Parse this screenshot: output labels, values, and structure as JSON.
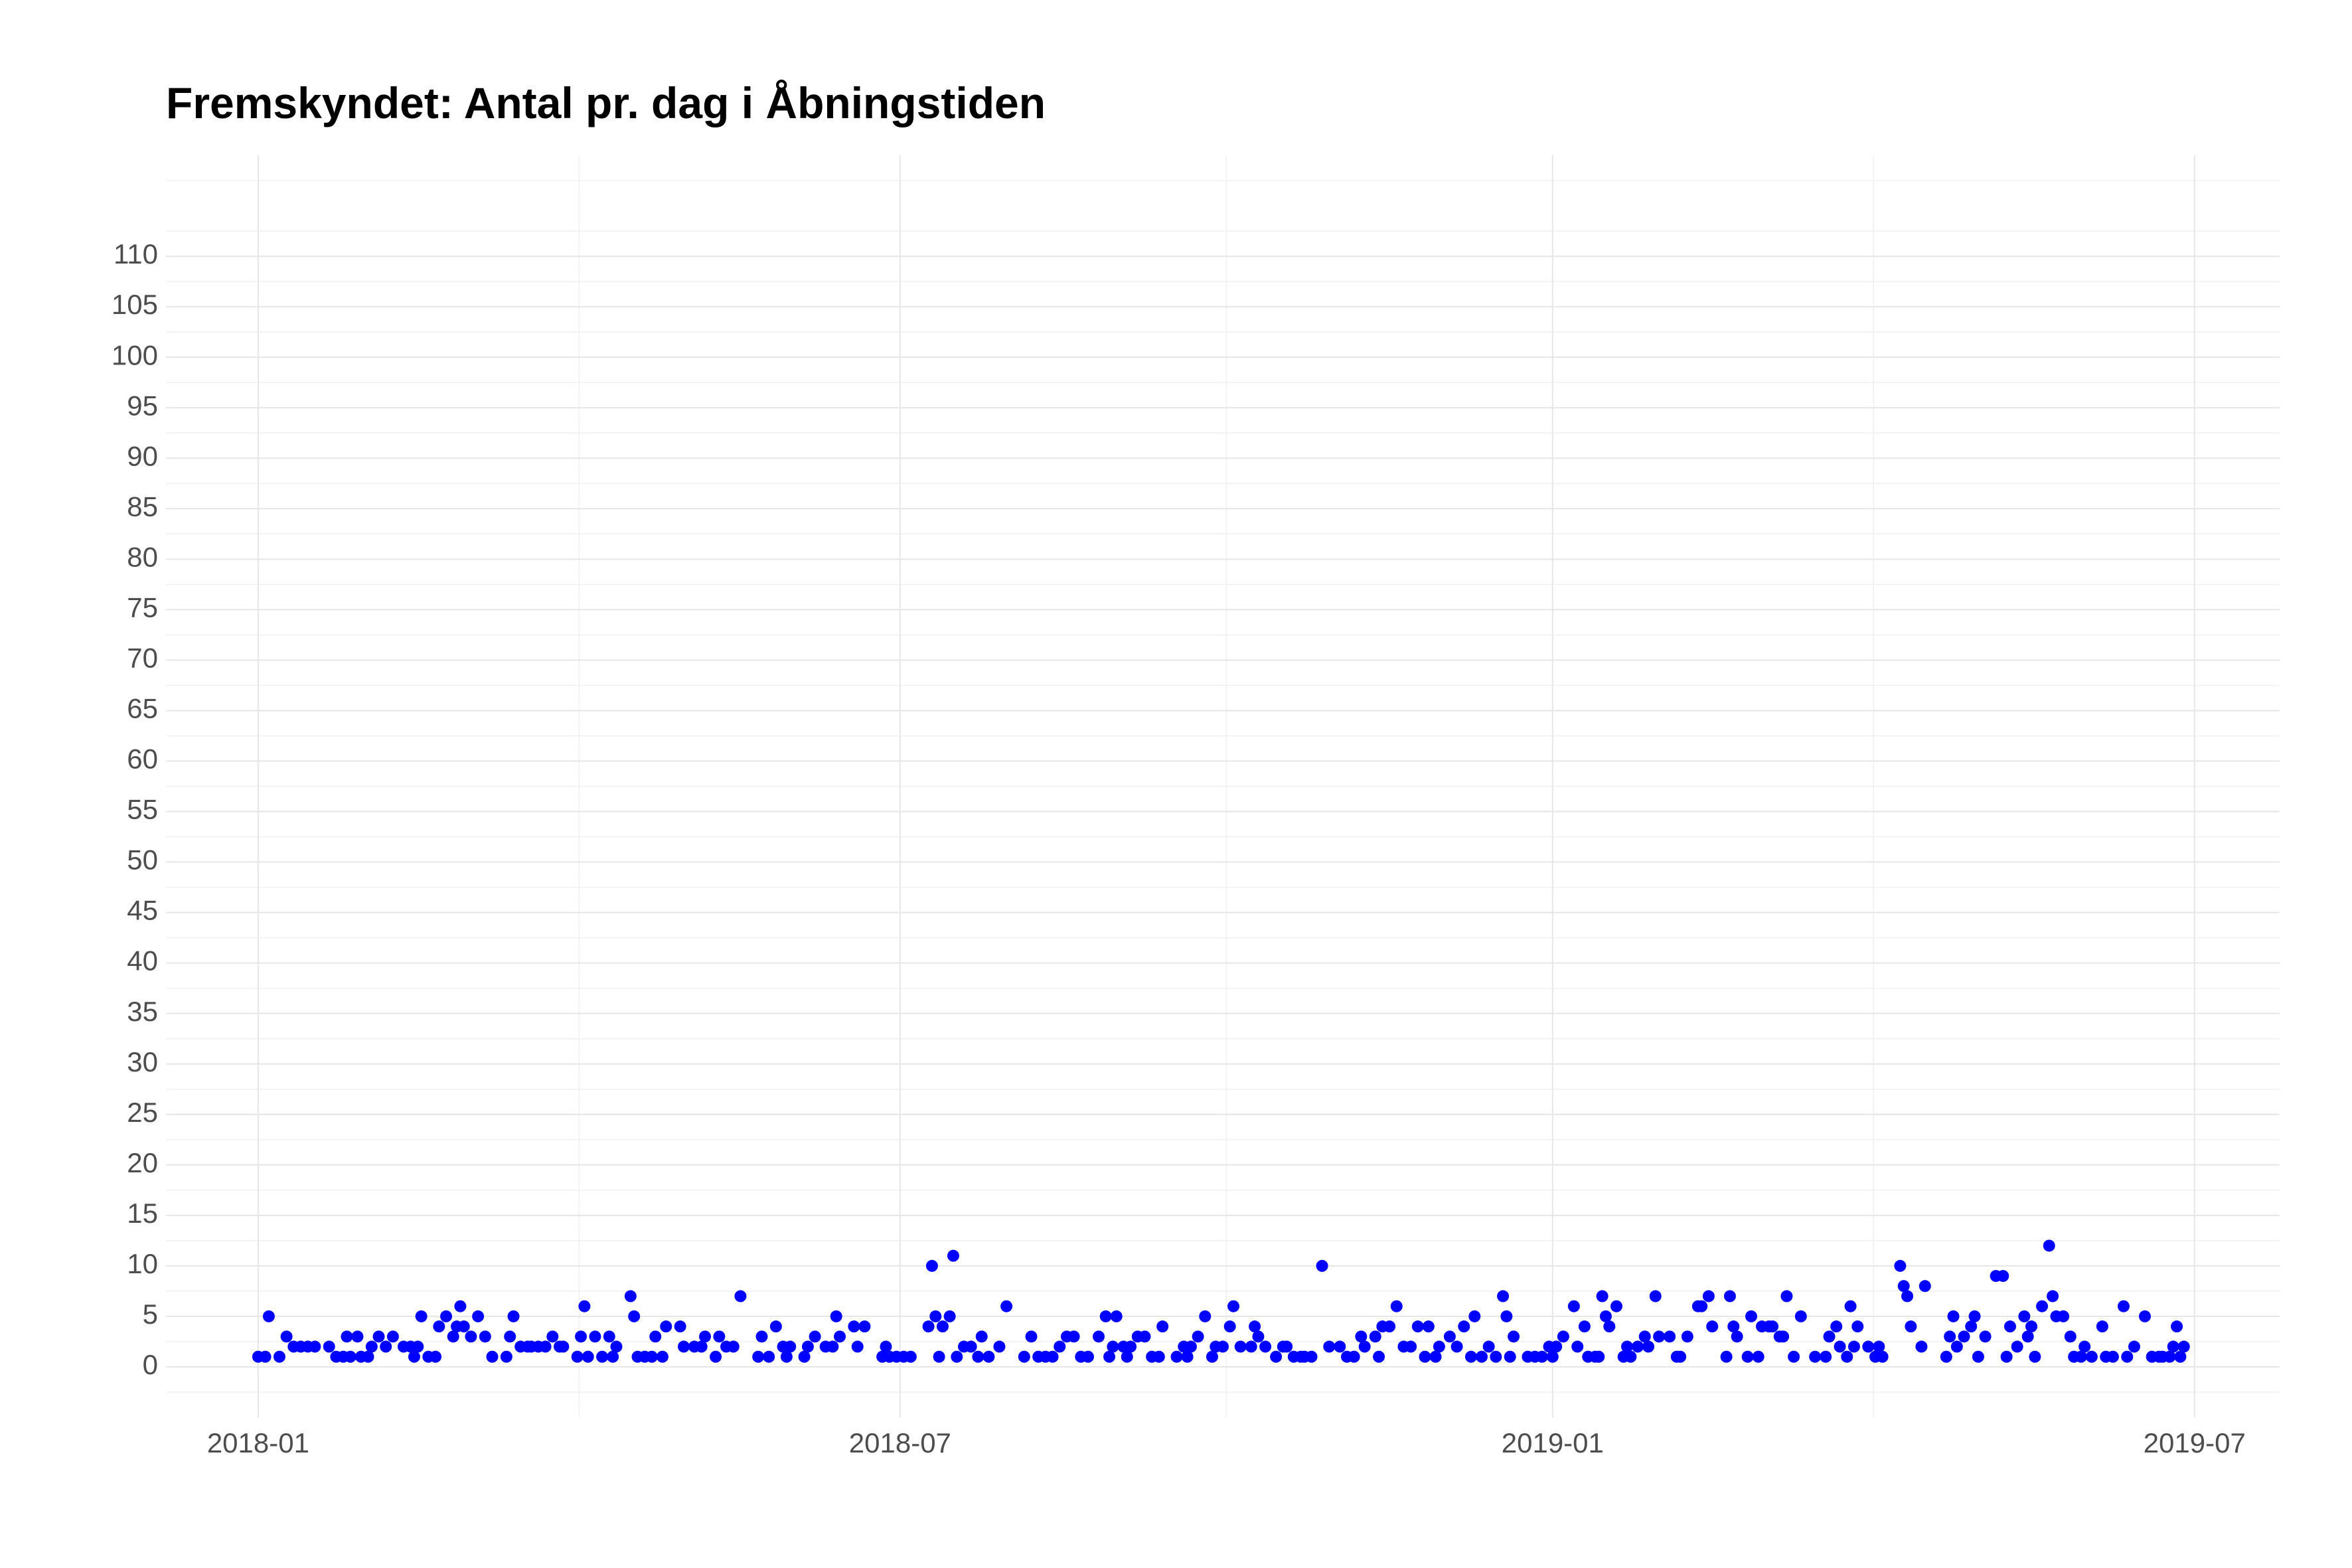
{
  "chart_data": {
    "type": "scatter",
    "title": "Fremskyndet: Antal pr. dag i Åbningstiden",
    "color": "#0000ff",
    "grid": true,
    "xlim": [
      -26,
      570
    ],
    "xticks": [
      {
        "value": 0,
        "label": "2018-01"
      },
      {
        "value": 181,
        "label": "2018-07"
      },
      {
        "value": 365,
        "label": "2019-01"
      },
      {
        "value": 546,
        "label": "2019-07"
      }
    ],
    "ylim": [
      -5,
      120
    ],
    "yticks": [
      0,
      5,
      10,
      15,
      20,
      25,
      30,
      35,
      40,
      45,
      50,
      55,
      60,
      65,
      70,
      75,
      80,
      85,
      90,
      95,
      100,
      105,
      110
    ],
    "x": [
      0,
      2,
      3,
      6,
      8,
      10,
      12,
      14,
      16,
      20,
      22,
      24,
      25,
      26,
      28,
      29,
      31,
      32,
      34,
      36,
      38,
      41,
      43,
      44,
      45,
      46,
      48,
      50,
      51,
      53,
      55,
      56,
      57,
      58,
      60,
      62,
      64,
      66,
      70,
      71,
      72,
      74,
      76,
      77,
      79,
      81,
      83,
      85,
      86,
      90,
      91,
      92,
      93,
      95,
      97,
      99,
      100,
      101,
      105,
      106,
      107,
      109,
      111,
      112,
      114,
      115,
      119,
      120,
      123,
      125,
      126,
      129,
      130,
      132,
      134,
      136,
      141,
      142,
      144,
      146,
      148,
      149,
      150,
      154,
      155,
      157,
      160,
      162,
      163,
      164,
      168,
      169,
      171,
      176,
      177,
      178,
      180,
      182,
      184,
      189,
      190,
      191,
      192,
      193,
      195,
      196,
      197,
      199,
      201,
      203,
      204,
      206,
      209,
      211,
      216,
      218,
      220,
      222,
      224,
      226,
      228,
      230,
      232,
      234,
      237,
      239,
      240,
      241,
      242,
      244,
      245,
      246,
      248,
      250,
      252,
      254,
      255,
      259,
      261,
      262,
      263,
      265,
      267,
      269,
      270,
      272,
      274,
      275,
      277,
      280,
      281,
      282,
      284,
      287,
      289,
      290,
      292,
      294,
      295,
      297,
      300,
      302,
      305,
      307,
      309,
      311,
      312,
      315,
      316,
      317,
      319,
      321,
      323,
      325,
      327,
      329,
      330,
      332,
      333,
      336,
      338,
      340,
      342,
      343,
      345,
      347,
      349,
      351,
      352,
      353,
      354,
      358,
      360,
      362,
      364,
      365,
      366,
      368,
      371,
      372,
      374,
      375,
      377,
      378,
      379,
      380,
      381,
      383,
      385,
      386,
      387,
      389,
      391,
      392,
      394,
      395,
      398,
      400,
      401,
      403,
      406,
      407,
      409,
      410,
      414,
      415,
      416,
      417,
      420,
      421,
      423,
      424,
      426,
      427,
      429,
      430,
      431,
      433,
      435,
      439,
      442,
      443,
      445,
      446,
      448,
      449,
      450,
      451,
      454,
      456,
      457,
      458,
      463,
      464,
      465,
      466,
      469,
      470,
      476,
      477,
      478,
      479,
      481,
      483,
      484,
      485,
      487,
      490,
      492,
      493,
      494,
      496,
      498,
      499,
      500,
      501,
      503,
      505,
      506,
      507,
      509,
      511,
      512,
      514,
      515,
      517,
      520,
      521,
      523,
      526,
      527,
      529,
      532,
      534,
      536,
      537,
      539,
      540,
      541,
      542,
      543
    ],
    "values": [
      1,
      1,
      5,
      1,
      3,
      2,
      2,
      2,
      2,
      2,
      1,
      1,
      3,
      1,
      3,
      1,
      1,
      2,
      3,
      2,
      3,
      2,
      2,
      1,
      2,
      5,
      1,
      1,
      4,
      5,
      3,
      4,
      6,
      4,
      3,
      5,
      3,
      1,
      1,
      3,
      5,
      2,
      2,
      2,
      2,
      2,
      3,
      2,
      2,
      1,
      3,
      6,
      1,
      3,
      1,
      3,
      1,
      2,
      7,
      5,
      1,
      1,
      1,
      3,
      1,
      4,
      4,
      2,
      2,
      2,
      3,
      1,
      3,
      2,
      2,
      7,
      1,
      3,
      1,
      4,
      2,
      1,
      2,
      1,
      2,
      3,
      2,
      2,
      5,
      3,
      4,
      2,
      4,
      1,
      2,
      1,
      1,
      1,
      1,
      4,
      10,
      5,
      1,
      4,
      5,
      11,
      1,
      2,
      2,
      1,
      3,
      1,
      2,
      6,
      1,
      3,
      1,
      1,
      1,
      2,
      3,
      3,
      1,
      1,
      3,
      5,
      1,
      2,
      5,
      2,
      1,
      2,
      3,
      3,
      1,
      1,
      4,
      1,
      2,
      1,
      2,
      3,
      5,
      1,
      2,
      2,
      4,
      6,
      2,
      2,
      4,
      3,
      2,
      1,
      2,
      2,
      1,
      1,
      1,
      1,
      10,
      2,
      2,
      1,
      1,
      3,
      2,
      3,
      1,
      4,
      4,
      6,
      2,
      2,
      4,
      1,
      4,
      1,
      2,
      3,
      2,
      4,
      1,
      5,
      1,
      2,
      1,
      7,
      5,
      1,
      3,
      1,
      1,
      1,
      2,
      1,
      2,
      3,
      6,
      2,
      4,
      1,
      1,
      1,
      7,
      5,
      4,
      6,
      1,
      2,
      1,
      2,
      3,
      2,
      7,
      3,
      3,
      1,
      1,
      3,
      6,
      6,
      7,
      4,
      1,
      7,
      4,
      3,
      1,
      5,
      1,
      4,
      4,
      4,
      3,
      3,
      7,
      1,
      5,
      1,
      1,
      3,
      4,
      2,
      1,
      6,
      2,
      4,
      2,
      1,
      2,
      1,
      10,
      8,
      7,
      4,
      2,
      8,
      1,
      3,
      5,
      2,
      3,
      4,
      5,
      1,
      3,
      9,
      9,
      1,
      4,
      2,
      5,
      3,
      4,
      1,
      6,
      12,
      7,
      5,
      5,
      3,
      1,
      1,
      2,
      1,
      4,
      1,
      1,
      6,
      1,
      2,
      5,
      1,
      1,
      1,
      1,
      2,
      4,
      1,
      2
    ]
  }
}
